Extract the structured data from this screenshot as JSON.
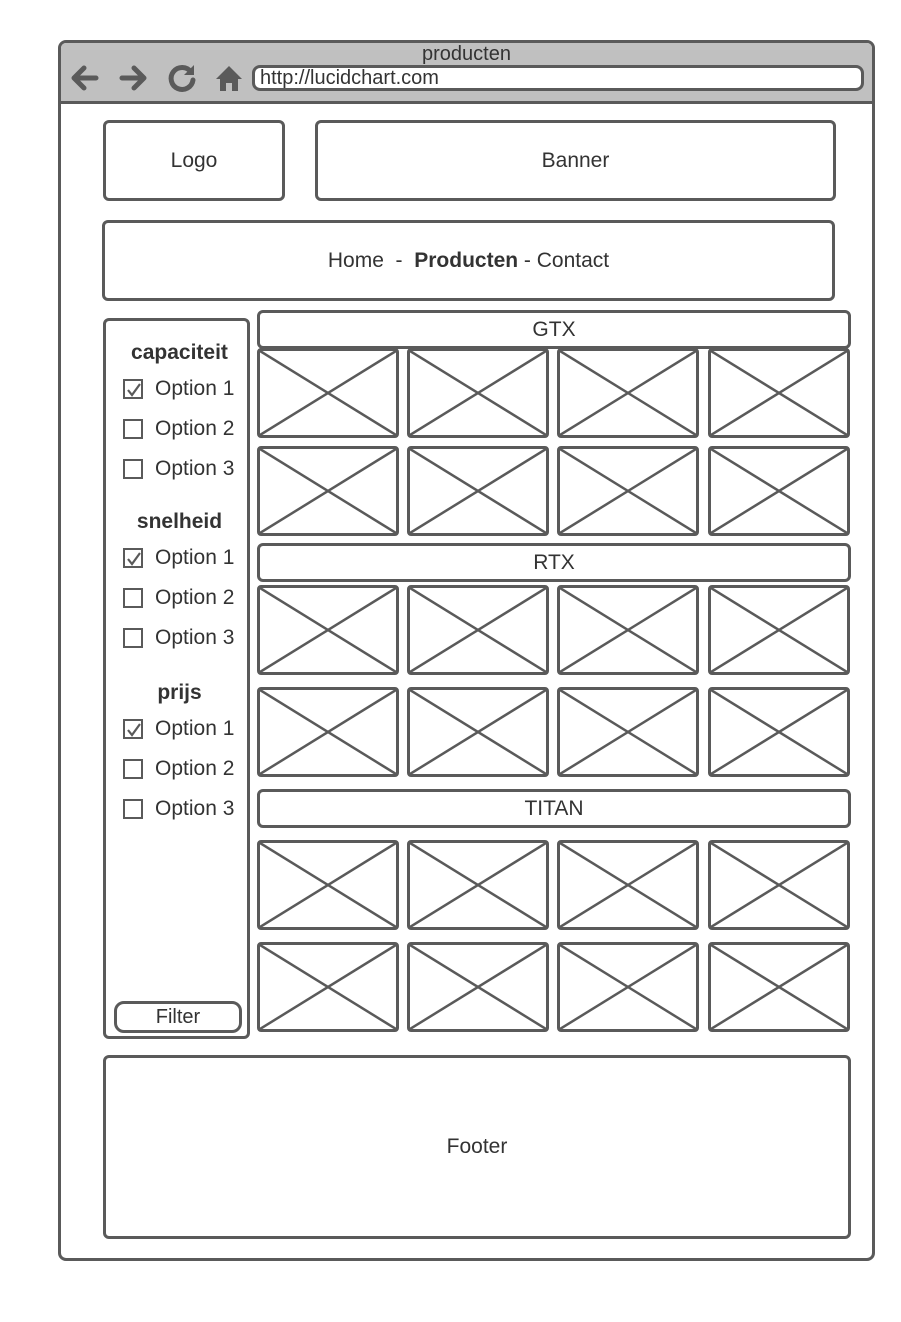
{
  "browser": {
    "title": "producten",
    "url": "http://lucidchart.com",
    "icons": [
      "back-arrow-icon",
      "forward-arrow-icon",
      "reload-icon",
      "home-icon"
    ]
  },
  "header": {
    "logo": "Logo",
    "banner": "Banner"
  },
  "nav": {
    "home": "Home",
    "sep1": "  -  ",
    "producten": "Producten",
    "sep2": " - ",
    "contact": "Contact"
  },
  "filters": {
    "groups": [
      {
        "title": "capaciteit",
        "options": [
          {
            "label": "Option 1",
            "checked": true
          },
          {
            "label": "Option 2",
            "checked": false
          },
          {
            "label": "Option 3",
            "checked": false
          }
        ]
      },
      {
        "title": "snelheid",
        "options": [
          {
            "label": "Option 1",
            "checked": true
          },
          {
            "label": "Option 2",
            "checked": false
          },
          {
            "label": "Option 3",
            "checked": false
          }
        ]
      },
      {
        "title": "prijs",
        "options": [
          {
            "label": "Option 1",
            "checked": true
          },
          {
            "label": "Option 2",
            "checked": false
          },
          {
            "label": "Option 3",
            "checked": false
          }
        ]
      }
    ],
    "button": "Filter"
  },
  "categories": [
    {
      "name": "GTX"
    },
    {
      "name": "RTX"
    },
    {
      "name": "TITAN"
    }
  ],
  "footer": "Footer",
  "colors": {
    "stroke": "#5a5a5a",
    "titlebar": "#c0c0c0",
    "text": "#333333"
  }
}
